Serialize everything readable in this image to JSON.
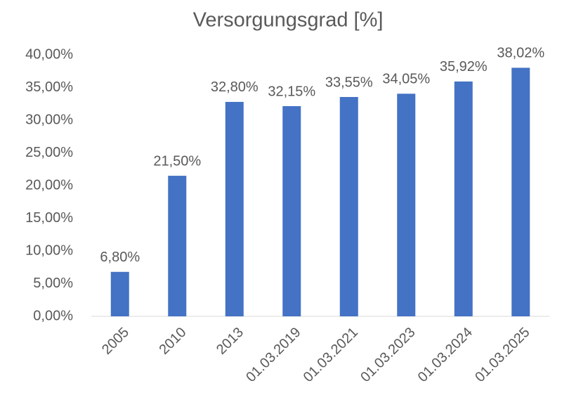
{
  "chart_data": {
    "type": "bar",
    "title": "Versorgungsgrad [%]",
    "categories": [
      "2005",
      "2010",
      "2013",
      "01.03.2019",
      "01.03.2021",
      "01.03.2023",
      "01.03.2024",
      "01.03.2025"
    ],
    "values": [
      6.8,
      21.5,
      32.8,
      32.15,
      33.55,
      34.05,
      35.92,
      38.02
    ],
    "value_labels": [
      "6,80%",
      "21,50%",
      "32,80%",
      "32,15%",
      "33,55%",
      "34,05%",
      "35,92%",
      "38,02%"
    ],
    "color": "#4472c4",
    "ylim": [
      0,
      40
    ],
    "yticks": [
      {
        "value": 0,
        "label": "0,00%"
      },
      {
        "value": 5,
        "label": "5,00%"
      },
      {
        "value": 10,
        "label": "10,00%"
      },
      {
        "value": 15,
        "label": "15,00%"
      },
      {
        "value": 20,
        "label": "20,00%"
      },
      {
        "value": 25,
        "label": "25,00%"
      },
      {
        "value": 30,
        "label": "30,00%"
      },
      {
        "value": 35,
        "label": "35,00%"
      },
      {
        "value": 40,
        "label": "40,00%"
      }
    ],
    "grid": false
  }
}
